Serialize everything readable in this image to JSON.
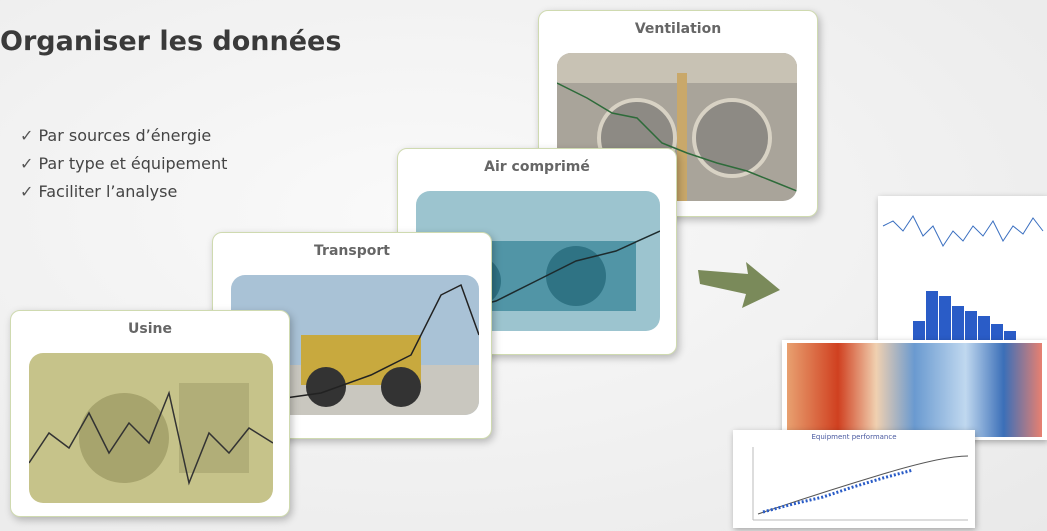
{
  "title": "Organiser les données",
  "bullets": [
    "Par sources d’énergie",
    "Par type et équipement",
    "Faciliter l’analyse"
  ],
  "cards": [
    {
      "label": "Ventilation"
    },
    {
      "label": "Air comprimé"
    },
    {
      "label": "Transport"
    },
    {
      "label": "Usine"
    }
  ],
  "thumbnail_title": "Equipment performance"
}
